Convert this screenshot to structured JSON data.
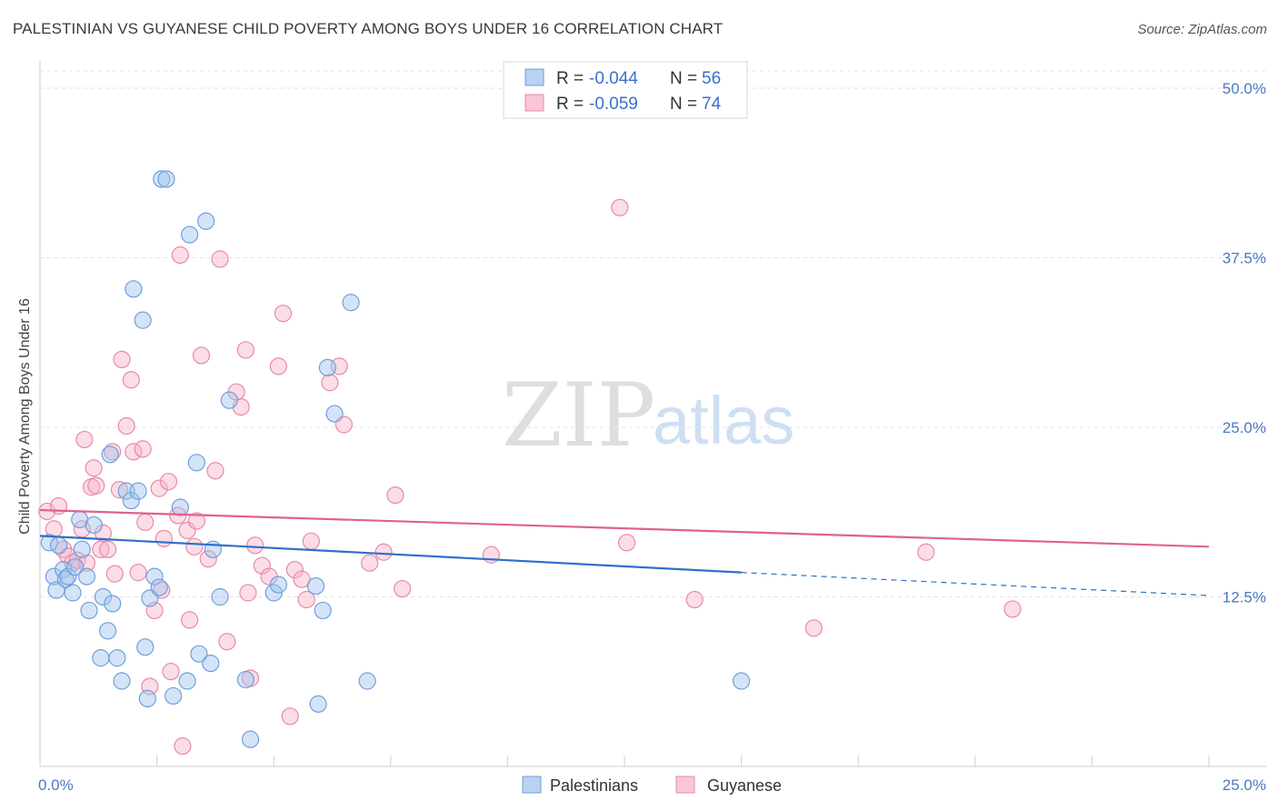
{
  "title": "PALESTINIAN VS GUYANESE CHILD POVERTY AMONG BOYS UNDER 16 CORRELATION CHART",
  "source": "Source: ZipAtlas.com",
  "watermark": {
    "zip": "ZIP",
    "atlas": "atlas"
  },
  "legend": {
    "rows": [
      {
        "r_label": "R = ",
        "r_value": "-0.044",
        "n_label": "N = ",
        "n_value": "56",
        "color": "#9fc3ee"
      },
      {
        "r_label": "R = ",
        "r_value": "-0.059",
        "n_label": "N = ",
        "n_value": "74",
        "color": "#f6b3c8"
      }
    ]
  },
  "bottom_legend": [
    {
      "name": "Palestinians",
      "color": "#9fc3ee"
    },
    {
      "name": "Guyanese",
      "color": "#f6b3c8"
    }
  ],
  "chart_data": {
    "type": "scatter",
    "title": "PALESTINIAN VS GUYANESE CHILD POVERTY AMONG BOYS UNDER 16 CORRELATION CHART",
    "xlabel": "",
    "ylabel": "Child Poverty Among Boys Under 16",
    "xlim": [
      0,
      25
    ],
    "ylim": [
      0,
      50
    ],
    "x_ticks": [
      "0.0%",
      "25.0%"
    ],
    "y_ticks": [
      {
        "value": 12.5,
        "label": "12.5%"
      },
      {
        "value": 25.0,
        "label": "25.0%"
      },
      {
        "value": 37.5,
        "label": "37.5%"
      },
      {
        "value": 50.0,
        "label": "50.0%"
      }
    ],
    "grid": "horizontal-dashed",
    "legend_position": "top-center",
    "series": [
      {
        "name": "Palestinians",
        "color": "#9fc3ee",
        "stroke": "#6f9fdc",
        "trend": {
          "x0": 0,
          "y0": 17.0,
          "x1": 15.0,
          "y1": 14.3,
          "dash_to_x": 25,
          "dash_to_y": 12.6,
          "color": "#2f6fcc"
        },
        "points": [
          [
            0.2,
            16.5
          ],
          [
            0.3,
            14.0
          ],
          [
            0.35,
            13.0
          ],
          [
            0.5,
            14.5
          ],
          [
            0.55,
            13.8
          ],
          [
            0.6,
            14.0
          ],
          [
            0.7,
            12.8
          ],
          [
            0.75,
            14.7
          ],
          [
            0.85,
            18.2
          ],
          [
            0.9,
            16.0
          ],
          [
            1.0,
            14.0
          ],
          [
            1.05,
            11.5
          ],
          [
            1.15,
            17.8
          ],
          [
            1.3,
            8.0
          ],
          [
            1.35,
            12.5
          ],
          [
            1.45,
            10.0
          ],
          [
            1.5,
            23.0
          ],
          [
            1.55,
            12.0
          ],
          [
            1.65,
            8.0
          ],
          [
            1.75,
            6.3
          ],
          [
            1.85,
            20.3
          ],
          [
            1.95,
            19.6
          ],
          [
            2.0,
            35.2
          ],
          [
            2.1,
            20.3
          ],
          [
            2.2,
            32.9
          ],
          [
            2.25,
            8.8
          ],
          [
            2.3,
            5.0
          ],
          [
            2.35,
            12.4
          ],
          [
            2.45,
            14.0
          ],
          [
            2.55,
            13.2
          ],
          [
            2.6,
            43.3
          ],
          [
            2.7,
            43.3
          ],
          [
            2.85,
            5.2
          ],
          [
            3.0,
            19.1
          ],
          [
            3.15,
            6.3
          ],
          [
            3.2,
            39.2
          ],
          [
            3.35,
            22.4
          ],
          [
            3.4,
            8.3
          ],
          [
            3.55,
            40.2
          ],
          [
            3.65,
            7.6
          ],
          [
            3.7,
            16.0
          ],
          [
            3.85,
            12.5
          ],
          [
            4.05,
            27.0
          ],
          [
            4.4,
            6.4
          ],
          [
            4.5,
            2.0
          ],
          [
            5.0,
            12.8
          ],
          [
            5.1,
            13.4
          ],
          [
            5.9,
            13.3
          ],
          [
            5.95,
            4.6
          ],
          [
            6.05,
            11.5
          ],
          [
            6.15,
            29.4
          ],
          [
            6.3,
            26.0
          ],
          [
            6.65,
            34.2
          ],
          [
            7.0,
            6.3
          ],
          [
            15.0,
            6.3
          ],
          [
            0.4,
            16.3
          ]
        ]
      },
      {
        "name": "Guyanese",
        "color": "#f6b3c8",
        "stroke": "#e88aa8",
        "trend": {
          "x0": 0,
          "y0": 18.9,
          "x1": 25,
          "y1": 16.2,
          "color": "#e0628a"
        },
        "points": [
          [
            0.15,
            18.8
          ],
          [
            0.3,
            17.5
          ],
          [
            0.5,
            16.0
          ],
          [
            0.6,
            15.5
          ],
          [
            0.7,
            15.0
          ],
          [
            0.8,
            15.2
          ],
          [
            0.9,
            17.5
          ],
          [
            0.95,
            24.1
          ],
          [
            1.0,
            15.0
          ],
          [
            1.1,
            20.6
          ],
          [
            1.15,
            22.0
          ],
          [
            1.2,
            20.7
          ],
          [
            1.3,
            16.0
          ],
          [
            1.35,
            17.2
          ],
          [
            1.45,
            16.0
          ],
          [
            1.55,
            23.2
          ],
          [
            1.7,
            20.4
          ],
          [
            1.75,
            30.0
          ],
          [
            1.85,
            25.1
          ],
          [
            1.95,
            28.5
          ],
          [
            2.0,
            23.2
          ],
          [
            2.1,
            14.3
          ],
          [
            2.2,
            23.4
          ],
          [
            2.25,
            18.0
          ],
          [
            2.35,
            5.9
          ],
          [
            2.45,
            11.5
          ],
          [
            2.55,
            20.5
          ],
          [
            2.65,
            16.8
          ],
          [
            2.75,
            21.0
          ],
          [
            2.8,
            7.0
          ],
          [
            2.95,
            18.5
          ],
          [
            3.0,
            37.7
          ],
          [
            3.05,
            1.5
          ],
          [
            3.15,
            17.4
          ],
          [
            3.2,
            10.8
          ],
          [
            3.3,
            16.2
          ],
          [
            3.35,
            18.1
          ],
          [
            3.45,
            30.3
          ],
          [
            3.6,
            15.3
          ],
          [
            3.75,
            21.8
          ],
          [
            3.85,
            37.4
          ],
          [
            4.0,
            9.2
          ],
          [
            4.2,
            27.6
          ],
          [
            4.3,
            26.5
          ],
          [
            4.4,
            30.7
          ],
          [
            4.5,
            6.5
          ],
          [
            4.6,
            16.3
          ],
          [
            4.75,
            14.8
          ],
          [
            4.9,
            14.0
          ],
          [
            5.1,
            29.5
          ],
          [
            5.2,
            33.4
          ],
          [
            5.35,
            3.7
          ],
          [
            5.45,
            14.5
          ],
          [
            5.6,
            13.8
          ],
          [
            5.7,
            12.3
          ],
          [
            5.8,
            16.6
          ],
          [
            6.2,
            28.3
          ],
          [
            6.4,
            29.5
          ],
          [
            6.5,
            25.2
          ],
          [
            7.05,
            15.0
          ],
          [
            7.35,
            15.8
          ],
          [
            7.6,
            20.0
          ],
          [
            7.75,
            13.1
          ],
          [
            9.65,
            15.6
          ],
          [
            12.4,
            41.2
          ],
          [
            12.55,
            16.5
          ],
          [
            14.0,
            12.3
          ],
          [
            16.55,
            10.2
          ],
          [
            18.95,
            15.8
          ],
          [
            20.8,
            11.6
          ],
          [
            4.45,
            12.8
          ],
          [
            2.6,
            13.0
          ],
          [
            0.4,
            19.2
          ],
          [
            1.6,
            14.2
          ]
        ]
      }
    ]
  }
}
